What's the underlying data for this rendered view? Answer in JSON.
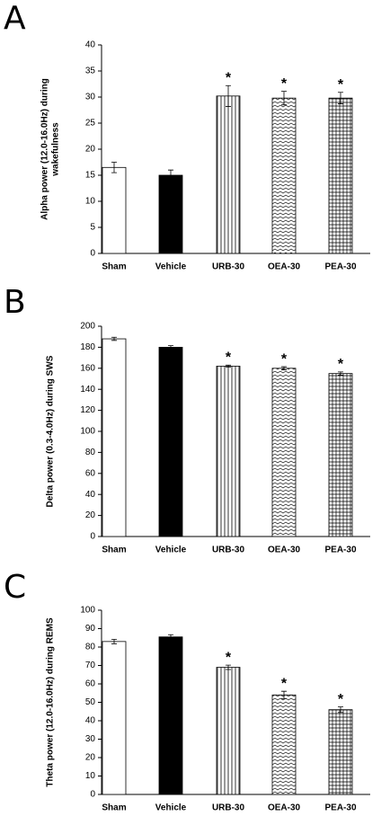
{
  "chart_data": [
    {
      "type": "bar",
      "panel": "A",
      "ylabel": [
        "Alpha power (12.0-16.0Hz) during",
        "wakefulness"
      ],
      "categories": [
        "Sham",
        "Vehicle",
        "URB-30",
        "OEA-30",
        "PEA-30"
      ],
      "values": [
        16.5,
        15,
        30.2,
        29.8,
        29.8
      ],
      "errors": [
        1,
        1,
        2,
        1.3,
        1.1
      ],
      "markers": [
        null,
        null,
        "*",
        "*",
        "*"
      ],
      "colors": [
        "#ffffff",
        "#000000",
        "#ffffff",
        "#ffffff",
        "#ffffff"
      ],
      "patterns": [
        null,
        null,
        "vertical",
        "zigzag",
        "grid"
      ],
      "ylim": [
        0,
        40
      ],
      "yticks": [
        0,
        5,
        10,
        15,
        20,
        25,
        30,
        35,
        40
      ]
    },
    {
      "type": "bar",
      "panel": "B",
      "ylabel": [
        "Delta power (0.3-4.0Hz) during SWS"
      ],
      "categories": [
        "Sham",
        "Vehicle",
        "URB-30",
        "OEA-30",
        "PEA-30"
      ],
      "values": [
        188,
        180,
        162,
        160,
        155
      ],
      "errors": [
        1.5,
        1.5,
        1,
        1.5,
        1.5
      ],
      "markers": [
        null,
        null,
        "*",
        "*",
        "*"
      ],
      "colors": [
        "#ffffff",
        "#000000",
        "#ffffff",
        "#ffffff",
        "#ffffff"
      ],
      "patterns": [
        null,
        null,
        "vertical",
        "zigzag",
        "grid"
      ],
      "ylim": [
        0,
        200
      ],
      "yticks": [
        0,
        20,
        40,
        60,
        80,
        100,
        120,
        140,
        160,
        180,
        200
      ]
    },
    {
      "type": "bar",
      "panel": "C",
      "ylabel": [
        "Theta power (12.0-16.0Hz) during REMS"
      ],
      "categories": [
        "Sham",
        "Vehicle",
        "URB-30",
        "OEA-30",
        "PEA-30"
      ],
      "values": [
        83,
        85.5,
        69,
        54,
        46
      ],
      "errors": [
        1.2,
        1.2,
        1.2,
        2,
        1.5
      ],
      "markers": [
        null,
        null,
        "*",
        "*",
        "*"
      ],
      "colors": [
        "#ffffff",
        "#000000",
        "#ffffff",
        "#ffffff",
        "#ffffff"
      ],
      "patterns": [
        null,
        null,
        "vertical",
        "zigzag",
        "grid"
      ],
      "ylim": [
        0,
        100
      ],
      "yticks": [
        0,
        10,
        20,
        30,
        40,
        50,
        60,
        70,
        80,
        90,
        100
      ]
    }
  ]
}
